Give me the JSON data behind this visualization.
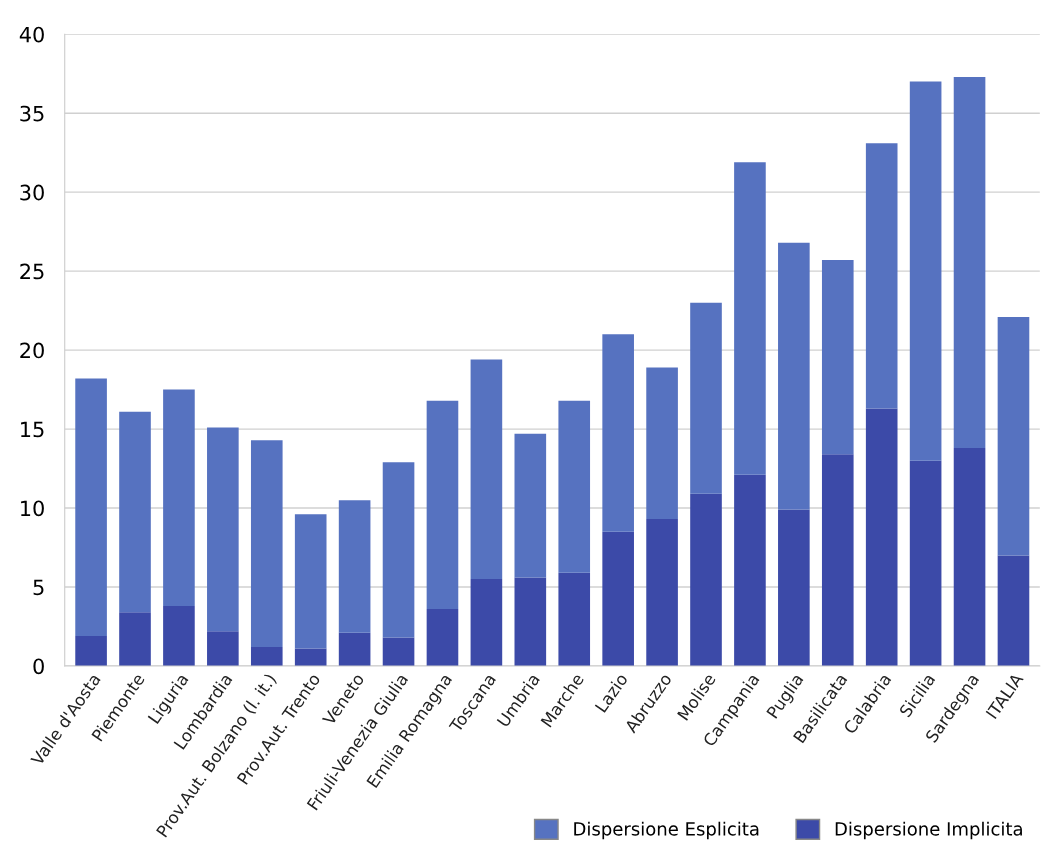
{
  "chart_data": {
    "type": "bar",
    "stacked": true,
    "categories": [
      "Valle d'Aosta",
      "Piemonte",
      "Liguria",
      "Lombardia",
      "Prov.Aut. Bolzano (l. it.)",
      "Prov.Aut. Trento",
      "Veneto",
      "Friuli-Venezia Giulia",
      "Emilia Romagna",
      "Toscana",
      "Umbria",
      "Marche",
      "Lazio",
      "Abruzzo",
      "Molise",
      "Campania",
      "Puglia",
      "Basilicata",
      "Calabria",
      "Sicilia",
      "Sardegna",
      "ITALIA"
    ],
    "series": [
      {
        "name": "Dispersione Implicita",
        "color": "#3c4aa8",
        "values": [
          1.9,
          3.4,
          3.8,
          2.2,
          1.2,
          1.1,
          2.1,
          1.8,
          3.6,
          5.5,
          5.6,
          5.9,
          8.5,
          9.3,
          10.9,
          12.1,
          9.9,
          13.4,
          16.3,
          13.0,
          13.8,
          7.0
        ]
      },
      {
        "name": "Dispersione Esplicita",
        "color": "#5672c0",
        "values": [
          16.3,
          12.7,
          13.7,
          12.9,
          13.1,
          8.5,
          8.4,
          11.1,
          13.2,
          13.9,
          9.1,
          10.9,
          12.5,
          9.6,
          12.1,
          19.8,
          16.9,
          12.3,
          16.8,
          24.0,
          23.5,
          15.1
        ]
      }
    ],
    "ylim": [
      0,
      40
    ],
    "yticks": [
      0,
      5,
      10,
      15,
      20,
      25,
      30,
      35,
      40
    ],
    "grid": "y",
    "legend": "bottom right"
  }
}
